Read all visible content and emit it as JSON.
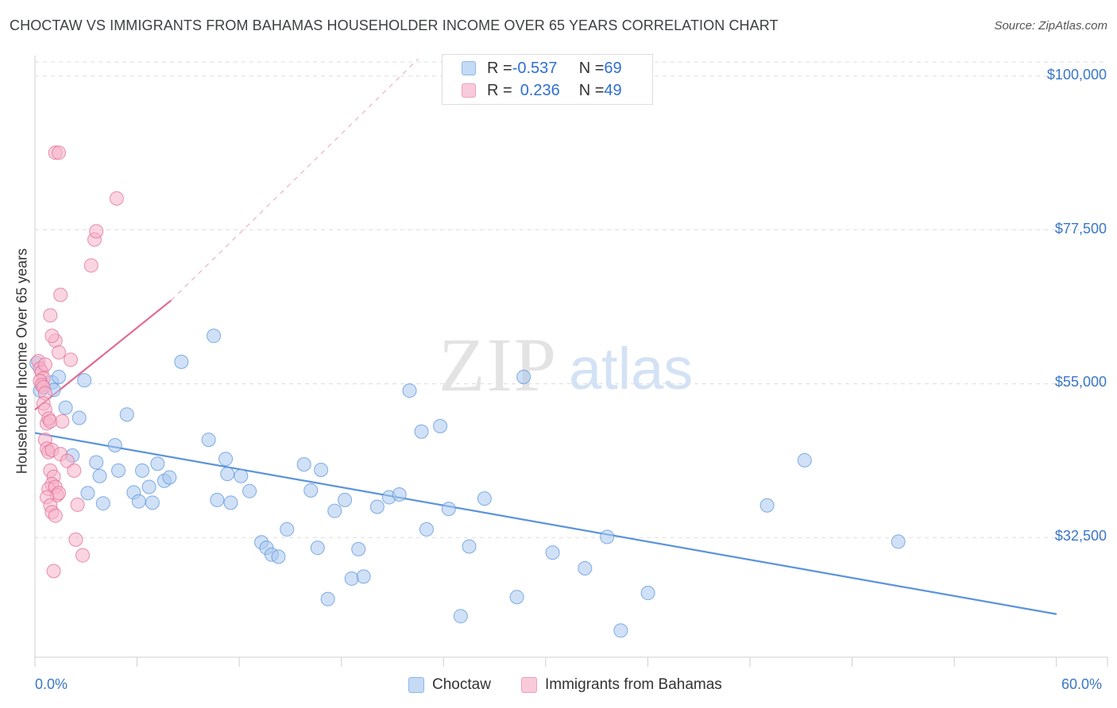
{
  "title": "CHOCTAW VS IMMIGRANTS FROM BAHAMAS HOUSEHOLDER INCOME OVER 65 YEARS CORRELATION CHART",
  "source": "Source: ZipAtlas.com",
  "watermark": {
    "zip": "ZIP",
    "atlas": "atlas"
  },
  "legend_top": {
    "rows": [
      {
        "r_label": "R = ",
        "r_value": "-0.537",
        "n_label": "N = ",
        "n_value": "69",
        "color": "#a9c8f0"
      },
      {
        "r_label": "R = ",
        "r_value": "0.236",
        "n_label": "N = ",
        "n_value": "49",
        "color": "#f5b3c8"
      }
    ]
  },
  "chart_data": {
    "type": "scatter",
    "title": "CHOCTAW VS IMMIGRANTS FROM BAHAMAS HOUSEHOLDER INCOME OVER 65 YEARS CORRELATION CHART",
    "xlabel": "",
    "ylabel": "Householder Income Over 65 years",
    "xlim": [
      0,
      60
    ],
    "ylim": [
      15000,
      103000
    ],
    "x_tick_labels": [
      "0.0%",
      "60.0%"
    ],
    "y_ticks": [
      100000,
      77500,
      55000,
      32500
    ],
    "y_tick_labels": [
      "$100,000",
      "$77,500",
      "$55,000",
      "$32,500"
    ],
    "grid": true,
    "legend_position": "bottom",
    "series": [
      {
        "name": "Choctaw",
        "color": "#5b93db",
        "fill": "#a9c8f0",
        "points": [
          [
            0.1,
            58000
          ],
          [
            0.3,
            54000
          ],
          [
            1.0,
            55200
          ],
          [
            1.1,
            54100
          ],
          [
            1.4,
            56000
          ],
          [
            1.8,
            51500
          ],
          [
            2.2,
            44500
          ],
          [
            2.6,
            50000
          ],
          [
            2.9,
            55500
          ],
          [
            3.1,
            39000
          ],
          [
            3.6,
            43500
          ],
          [
            3.8,
            41500
          ],
          [
            4.0,
            37500
          ],
          [
            4.7,
            46000
          ],
          [
            4.9,
            42300
          ],
          [
            5.4,
            50500
          ],
          [
            5.8,
            39100
          ],
          [
            6.1,
            37800
          ],
          [
            6.3,
            42300
          ],
          [
            6.7,
            39900
          ],
          [
            6.9,
            37600
          ],
          [
            7.2,
            43300
          ],
          [
            7.6,
            40800
          ],
          [
            7.9,
            41300
          ],
          [
            8.6,
            58200
          ],
          [
            10.2,
            46800
          ],
          [
            10.5,
            62000
          ],
          [
            10.7,
            38000
          ],
          [
            11.2,
            44000
          ],
          [
            11.5,
            37600
          ],
          [
            12.1,
            41500
          ],
          [
            11.3,
            41800
          ],
          [
            12.6,
            39300
          ],
          [
            13.3,
            31800
          ],
          [
            13.6,
            31000
          ],
          [
            13.9,
            30000
          ],
          [
            14.3,
            29700
          ],
          [
            14.8,
            33700
          ],
          [
            15.8,
            43200
          ],
          [
            16.2,
            39400
          ],
          [
            16.6,
            31000
          ],
          [
            16.8,
            42400
          ],
          [
            17.2,
            23500
          ],
          [
            17.6,
            36400
          ],
          [
            18.2,
            38000
          ],
          [
            18.6,
            26500
          ],
          [
            19.0,
            30800
          ],
          [
            19.3,
            26800
          ],
          [
            20.1,
            37000
          ],
          [
            20.8,
            38400
          ],
          [
            21.4,
            38800
          ],
          [
            22.0,
            54000
          ],
          [
            22.7,
            48000
          ],
          [
            23.0,
            33700
          ],
          [
            23.8,
            48800
          ],
          [
            24.3,
            36700
          ],
          [
            25.0,
            21000
          ],
          [
            25.5,
            31200
          ],
          [
            28.3,
            23800
          ],
          [
            28.7,
            56000
          ],
          [
            30.4,
            30300
          ],
          [
            32.3,
            28000
          ],
          [
            33.6,
            32600
          ],
          [
            34.4,
            18900
          ],
          [
            36.0,
            24400
          ],
          [
            43.0,
            37200
          ],
          [
            45.2,
            43800
          ],
          [
            50.7,
            31900
          ],
          [
            26.4,
            38200
          ]
        ],
        "trend": {
          "x": [
            0,
            60
          ],
          "y": [
            47800,
            21300
          ]
        }
      },
      {
        "name": "Immigrants from Bahamas",
        "color": "#e06b94",
        "fill": "#f5b3c8",
        "points": [
          [
            0.2,
            58300
          ],
          [
            0.3,
            57200
          ],
          [
            0.4,
            56700
          ],
          [
            0.5,
            55800
          ],
          [
            0.3,
            55400
          ],
          [
            0.4,
            54800
          ],
          [
            0.5,
            54500
          ],
          [
            0.6,
            53600
          ],
          [
            0.5,
            52100
          ],
          [
            0.6,
            51200
          ],
          [
            0.7,
            49200
          ],
          [
            0.8,
            49900
          ],
          [
            0.9,
            49500
          ],
          [
            0.6,
            46800
          ],
          [
            0.7,
            45500
          ],
          [
            0.8,
            45000
          ],
          [
            1.0,
            45300
          ],
          [
            0.9,
            42300
          ],
          [
            1.1,
            41400
          ],
          [
            1.0,
            40300
          ],
          [
            0.8,
            39600
          ],
          [
            1.2,
            39900
          ],
          [
            1.3,
            38700
          ],
          [
            1.4,
            39000
          ],
          [
            0.7,
            38400
          ],
          [
            0.9,
            37200
          ],
          [
            1.0,
            36200
          ],
          [
            1.2,
            35700
          ],
          [
            1.5,
            44700
          ],
          [
            1.6,
            49500
          ],
          [
            1.9,
            43700
          ],
          [
            2.3,
            42300
          ],
          [
            2.5,
            37300
          ],
          [
            2.4,
            32200
          ],
          [
            2.8,
            29900
          ],
          [
            2.1,
            58500
          ],
          [
            1.2,
            61300
          ],
          [
            1.0,
            62000
          ],
          [
            1.4,
            59600
          ],
          [
            0.9,
            65000
          ],
          [
            1.5,
            68000
          ],
          [
            1.2,
            88800
          ],
          [
            1.4,
            88800
          ],
          [
            3.5,
            76100
          ],
          [
            3.6,
            77300
          ],
          [
            3.3,
            72300
          ],
          [
            4.8,
            82100
          ],
          [
            0.6,
            57800
          ],
          [
            1.1,
            27600
          ]
        ],
        "trend": {
          "x": [
            0,
            8.0
          ],
          "y": [
            51200,
            67200
          ]
        },
        "trend_extension": {
          "x": [
            8.0,
            22.5
          ],
          "y": [
            67200,
            102500
          ]
        }
      }
    ]
  },
  "bottom_legend": [
    {
      "label": "Choctaw",
      "color": "#a9c8f0"
    },
    {
      "label": "Immigrants from Bahamas",
      "color": "#f5b3c8"
    }
  ]
}
